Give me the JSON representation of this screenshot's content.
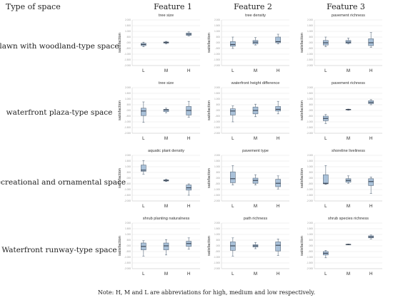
{
  "column_header_title": "Type of space",
  "features": [
    "Feature 1",
    "Feature 2",
    "Feature 3"
  ],
  "rows": [
    "lawn with woodland-type space",
    "waterfront plaza-type space",
    "recreational and ornamental space",
    "Waterfront runway-type space"
  ],
  "note": "Note: H, M and L are abbreviations for high, medium and low respectively.",
  "chart_data": {
    "type": "box",
    "ylabel": "satisfaction",
    "categories": [
      "L",
      "M",
      "H"
    ],
    "ylim": [
      -2,
      2
    ],
    "yticks": [
      2,
      1.5,
      1,
      0.5,
      0,
      -0.5,
      -1,
      -1.5,
      -2
    ],
    "ytick_labels": [
      "2.000",
      "1.500",
      "1.000",
      ".500",
      ".000",
      "-.500",
      "-1.000",
      "-1.500",
      "-2.000"
    ],
    "panels": [
      {
        "row": 0,
        "col": 0,
        "title": "tree size",
        "boxes": [
          {
            "min": -0.35,
            "q1": -0.25,
            "median": -0.15,
            "q3": -0.05,
            "max": 0.05
          },
          {
            "min": -0.1,
            "q1": -0.03,
            "median": 0.02,
            "q3": 0.07,
            "max": 0.12
          },
          {
            "min": 0.6,
            "q1": 0.65,
            "median": 0.75,
            "q3": 0.85,
            "max": 0.95
          }
        ]
      },
      {
        "row": 0,
        "col": 1,
        "title": "tree density",
        "boxes": [
          {
            "min": -0.5,
            "q1": -0.3,
            "median": -0.15,
            "q3": 0.1,
            "max": 0.5
          },
          {
            "min": -0.2,
            "q1": -0.1,
            "median": 0.05,
            "q3": 0.2,
            "max": 0.45
          },
          {
            "min": -0.1,
            "q1": 0.0,
            "median": 0.1,
            "q3": 0.5,
            "max": 0.75
          }
        ]
      },
      {
        "row": 0,
        "col": 2,
        "title": "pavement richness",
        "boxes": [
          {
            "min": -0.35,
            "q1": -0.2,
            "median": 0.0,
            "q3": 0.2,
            "max": 0.5
          },
          {
            "min": -0.1,
            "q1": -0.05,
            "median": 0.05,
            "q3": 0.2,
            "max": 0.4
          },
          {
            "min": -0.4,
            "q1": -0.25,
            "median": 0.0,
            "q3": 0.35,
            "max": 0.9
          }
        ]
      },
      {
        "row": 1,
        "col": 0,
        "title": "tree size",
        "boxes": [
          {
            "min": -1.05,
            "q1": -0.45,
            "median": -0.05,
            "q3": 0.2,
            "max": 0.75
          },
          {
            "min": -0.2,
            "q1": -0.1,
            "median": 0.05,
            "q3": 0.1,
            "max": 0.2
          },
          {
            "min": -0.6,
            "q1": -0.4,
            "median": 0.0,
            "q3": 0.35,
            "max": 0.8
          }
        ]
      },
      {
        "row": 1,
        "col": 1,
        "title": "waterfront height difference",
        "boxes": [
          {
            "min": -1.0,
            "q1": -0.4,
            "median": -0.05,
            "q3": 0.15,
            "max": 0.4
          },
          {
            "min": -0.55,
            "q1": -0.3,
            "median": 0.0,
            "q3": 0.3,
            "max": 0.55
          },
          {
            "min": -0.3,
            "q1": -0.05,
            "median": 0.1,
            "q3": 0.35,
            "max": 0.8
          }
        ]
      },
      {
        "row": 1,
        "col": 2,
        "title": "pavement richness",
        "boxes": [
          {
            "min": -1.15,
            "q1": -0.9,
            "median": -0.7,
            "q3": -0.5,
            "max": -0.35
          },
          {
            "min": 0.02,
            "q1": 0.05,
            "median": 0.08,
            "q3": 0.1,
            "max": 0.12
          },
          {
            "min": 0.5,
            "q1": 0.6,
            "median": 0.7,
            "q3": 0.85,
            "max": 0.95
          }
        ]
      },
      {
        "row": 2,
        "col": 0,
        "title": "aquatic plant density",
        "boxes": [
          {
            "min": 0.35,
            "q1": 0.6,
            "median": 0.7,
            "q3": 1.15,
            "max": 1.55
          },
          {
            "min": -0.3,
            "q1": -0.25,
            "median": -0.2,
            "q3": -0.15,
            "max": -0.1
          },
          {
            "min": -1.5,
            "q1": -1.05,
            "median": -0.85,
            "q3": -0.6,
            "max": -0.5
          }
        ]
      },
      {
        "row": 2,
        "col": 1,
        "title": "pavement type",
        "boxes": [
          {
            "min": -0.6,
            "q1": -0.4,
            "median": -0.05,
            "q3": 0.55,
            "max": 1.1
          },
          {
            "min": -0.6,
            "q1": -0.45,
            "median": -0.2,
            "q3": 0.0,
            "max": 0.3
          },
          {
            "min": -0.95,
            "q1": -0.75,
            "median": -0.45,
            "q3": -0.1,
            "max": 0.2
          }
        ]
      },
      {
        "row": 2,
        "col": 2,
        "title": "shoreline liveliness",
        "boxes": [
          {
            "min": -0.55,
            "q1": -0.5,
            "median": -0.45,
            "q3": 0.3,
            "max": 1.1
          },
          {
            "min": -0.45,
            "q1": -0.35,
            "median": -0.2,
            "q3": -0.05,
            "max": 0.2
          },
          {
            "min": -1.35,
            "q1": -0.65,
            "median": -0.3,
            "q3": -0.05,
            "max": 0.1
          }
        ]
      },
      {
        "row": 3,
        "col": 0,
        "title": "shrub planting naturalness",
        "boxes": [
          {
            "min": -0.9,
            "q1": -0.35,
            "median": -0.05,
            "q3": 0.25,
            "max": 0.45
          },
          {
            "min": -0.8,
            "q1": -0.35,
            "median": 0.0,
            "q3": 0.25,
            "max": 0.55
          },
          {
            "min": -0.3,
            "q1": -0.05,
            "median": 0.2,
            "q3": 0.4,
            "max": 0.7
          }
        ]
      },
      {
        "row": 3,
        "col": 1,
        "title": "path richness",
        "boxes": [
          {
            "min": -0.9,
            "q1": -0.4,
            "median": 0.0,
            "q3": 0.35,
            "max": 0.7
          },
          {
            "min": -0.25,
            "q1": -0.1,
            "median": 0.0,
            "q3": 0.1,
            "max": 0.3
          },
          {
            "min": -0.85,
            "q1": -0.45,
            "median": 0.05,
            "q3": 0.35,
            "max": 0.6
          }
        ]
      },
      {
        "row": 3,
        "col": 2,
        "title": "shrub species richness",
        "boxes": [
          {
            "min": -1.05,
            "q1": -0.8,
            "median": -0.65,
            "q3": -0.5,
            "max": -0.4
          },
          {
            "min": 0.08,
            "q1": 0.1,
            "median": 0.12,
            "q3": 0.14,
            "max": 0.16
          },
          {
            "min": 0.6,
            "q1": 0.7,
            "median": 0.78,
            "q3": 0.88,
            "max": 0.95
          }
        ]
      }
    ]
  }
}
